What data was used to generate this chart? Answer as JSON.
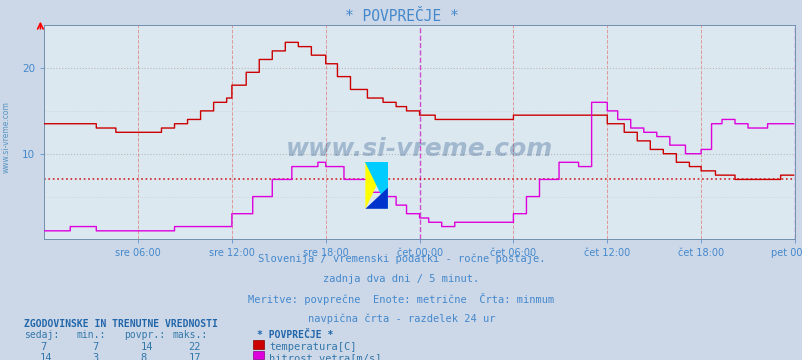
{
  "title": "* POVPREČJE *",
  "bg_color": "#ccd8e8",
  "plot_bg_color": "#dce8f0",
  "text_color": "#4488cc",
  "ylim": [
    0,
    25
  ],
  "yticks": [
    10,
    20
  ],
  "n_points": 576,
  "tick_labels": [
    "sre 06:00",
    "sre 12:00",
    "sre 18:00",
    "čet 00:00",
    "čet 06:00",
    "čet 12:00",
    "čet 18:00",
    "pet 00:00"
  ],
  "tick_positions": [
    72,
    144,
    216,
    288,
    360,
    432,
    504,
    576
  ],
  "temp_color": "#cc0000",
  "wind_color": "#dd00dd",
  "min_line_val": 7.0,
  "subtitle1": "Slovenija / vremenski podatki - ročne postaje.",
  "subtitle2": "zadnja dva dni / 5 minut.",
  "subtitle3": "Meritve: povprečne  Enote: metrične  Črta: minmum",
  "subtitle4": "navpična črta - razdelek 24 ur",
  "legend_title": "ZGODOVINSKE IN TRENUTNE VREDNOSTI",
  "col_headers": [
    "sedaj:",
    "min.:",
    "povpr.:",
    "maks.:"
  ],
  "row1_values": [
    "7",
    "7",
    "14",
    "22"
  ],
  "row1_label": "temperatura[C]",
  "row1_color": "#cc0000",
  "row2_values": [
    "14",
    "3",
    "8",
    "17"
  ],
  "row2_label": "hitrost vetra[m/s]",
  "row2_color": "#dd00dd",
  "watermark": "www.si-vreme.com",
  "watermark_color": "#1a4a80",
  "logo_yellow": "#ffff00",
  "logo_cyan": "#00ccff",
  "logo_blue": "#0033cc"
}
